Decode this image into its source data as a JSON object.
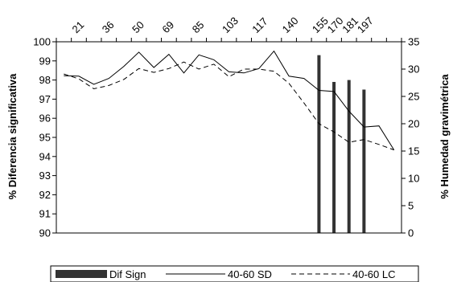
{
  "chart_data": {
    "type": "bar+line",
    "x": [
      1,
      2,
      3,
      4,
      5,
      6,
      7,
      8,
      9,
      10,
      11,
      12,
      13,
      14,
      15,
      16,
      17,
      18,
      19,
      20,
      21,
      22,
      23
    ],
    "top_tick_labels": [
      "21",
      "36",
      "50",
      "69",
      "85",
      "103",
      "117",
      "140",
      "155",
      "170",
      "181",
      "197"
    ],
    "top_tick_positions": [
      2,
      4,
      6,
      8,
      10,
      12,
      14,
      16,
      18,
      19,
      20,
      21
    ],
    "y_left": {
      "label": "% Diferencia significativa",
      "ylim": [
        90,
        100
      ],
      "ticks": [
        90,
        91,
        92,
        93,
        94,
        95,
        96,
        97,
        98,
        99,
        100
      ]
    },
    "y_right": {
      "label": "% Humedad gravimétrica",
      "ylim": [
        0,
        35
      ],
      "ticks": [
        0,
        5,
        10,
        15,
        20,
        25,
        30,
        35
      ]
    },
    "series": [
      {
        "name": "Dif Sign",
        "type": "bar",
        "axis": "left",
        "x": [
          18,
          19,
          20,
          21
        ],
        "values": [
          99.3,
          97.9,
          98.0,
          97.5
        ]
      },
      {
        "name": "40-60 SD",
        "type": "line",
        "style": "solid",
        "axis": "right",
        "values": [
          28.8,
          28.7,
          27.2,
          28.3,
          30.5,
          33.1,
          30.3,
          32.7,
          29.3,
          32.6,
          31.7,
          29.5,
          29.3,
          30.1,
          33.3,
          28.7,
          28.3,
          26.1,
          25.9,
          22.3,
          19.4,
          19.6,
          15.2
        ]
      },
      {
        "name": "40-60 LC",
        "type": "line",
        "style": "dashed",
        "axis": "right",
        "values": [
          29.1,
          28.2,
          26.4,
          27.0,
          28.1,
          30.1,
          29.4,
          30.1,
          31.3,
          30.0,
          30.9,
          28.6,
          30.0,
          30.0,
          29.6,
          27.4,
          23.8,
          20.0,
          18.5,
          16.6,
          17.1,
          16.2,
          15.2
        ]
      }
    ],
    "grid": false,
    "legend_position": "bottom"
  },
  "legend": {
    "items": [
      "Dif Sign",
      "40-60 SD",
      "40-60 LC"
    ]
  },
  "colors": {
    "bar": "#333333",
    "line": "#000000",
    "axis": "#000000"
  }
}
